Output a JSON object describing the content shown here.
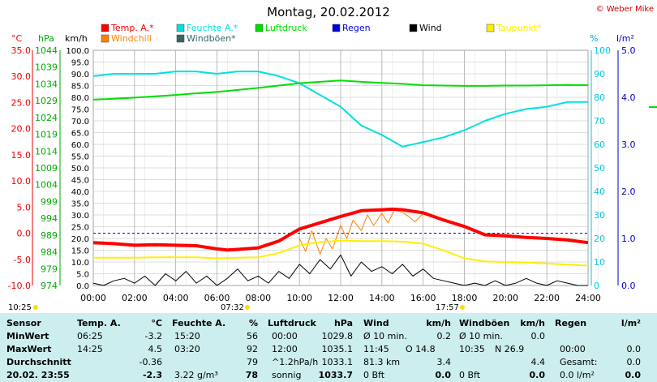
{
  "title": "Montag, 20.02.2012",
  "copyright": "© Weber Mike",
  "colors": {
    "temp": "#ff0000",
    "humidity": "#00e0e0",
    "pressure": "#00dd00",
    "rain": "#0000dd",
    "wind": "#000000",
    "dewpoint": "#ffee00",
    "windchill": "#ff8000",
    "gust": "#336666",
    "bg": "#ffffff",
    "panel": "#cdeeee"
  },
  "axis_units": {
    "temp": "°C",
    "pressure": "hPa",
    "wind": "km/h",
    "humidity": "%",
    "rain": "l/m²"
  },
  "legend": [
    {
      "label": "Temp. A.*",
      "color": "#ff0000"
    },
    {
      "label": "Feuchte A.*",
      "color": "#00e0e0"
    },
    {
      "label": "Luftdruck",
      "color": "#00dd00"
    },
    {
      "label": "Regen",
      "color": "#0000dd"
    },
    {
      "label": "Wind",
      "color": "#000000"
    },
    {
      "label": "Taupunkt*",
      "color": "#ffee00"
    },
    {
      "label": "Windchill",
      "color": "#ff8000"
    },
    {
      "label": "Windböen*",
      "color": "#336666"
    }
  ],
  "sun": {
    "sunrise": "07:32",
    "sunset": "17:57",
    "moonrise": "10:25"
  },
  "chart_data": {
    "type": "line",
    "xlabel": "",
    "x_ticks": [
      "00:00",
      "02:00",
      "04:00",
      "06:00",
      "08:00",
      "10:00",
      "12:00",
      "14:00",
      "16:00",
      "18:00",
      "20:00",
      "22:00",
      "24:00"
    ],
    "temp_ticks": [
      "35.0",
      "30.0",
      "25.0",
      "20.0",
      "15.0",
      "10.0",
      "5.0",
      "0.0",
      "-5.0",
      "-10.0"
    ],
    "pressure_ticks": [
      "1044",
      "1039",
      "1034",
      "1029",
      "1024",
      "1019",
      "1014",
      "1009",
      "1004",
      "999",
      "994",
      "989",
      "984",
      "979",
      "974"
    ],
    "wind_ticks": [
      "100.0",
      "95.0",
      "90.0",
      "85.0",
      "80.0",
      "75.0",
      "70.0",
      "65.0",
      "60.0",
      "55.0",
      "50.0",
      "45.0",
      "40.0",
      "35.0",
      "30.0",
      "25.0",
      "20.0",
      "15.0",
      "10.0",
      "5.0",
      "0.0"
    ],
    "humidity_ticks": [
      "100",
      "90",
      "80",
      "70",
      "60",
      "50",
      "40",
      "30",
      "20",
      "10",
      "0"
    ],
    "rain_ticks": [
      "5.0",
      "4.0",
      "3.0",
      "2.0",
      "1.0",
      "0.0"
    ],
    "ylim_temp": [
      -10,
      35
    ],
    "ylim_pressure": [
      974,
      1044
    ],
    "ylim_wind": [
      0,
      100
    ],
    "ylim_humidity": [
      0,
      100
    ],
    "ylim_rain": [
      0,
      5
    ],
    "xlim_hours": [
      0,
      24
    ],
    "series": [
      {
        "name": "Temp. A.*",
        "axis": "temp",
        "color": "#ff0000",
        "width": 4,
        "x": [
          0,
          1,
          2,
          3,
          4,
          5,
          6,
          6.5,
          7,
          8,
          9,
          10,
          11,
          12,
          13,
          14,
          14.5,
          15,
          16,
          17,
          18,
          19,
          20,
          21,
          22,
          23,
          24
        ],
        "y": [
          -1.8,
          -2.0,
          -2.3,
          -2.2,
          -2.3,
          -2.4,
          -3.0,
          -3.2,
          -3.1,
          -2.8,
          -1.5,
          0.8,
          2.0,
          3.2,
          4.3,
          4.5,
          4.6,
          4.5,
          3.9,
          2.5,
          1.3,
          -0.3,
          -0.5,
          -0.8,
          -1.0,
          -1.3,
          -1.8
        ]
      },
      {
        "name": "Feuchte A.*",
        "axis": "humidity",
        "color": "#00e0e0",
        "width": 2,
        "x": [
          0,
          1,
          2,
          3,
          4,
          5,
          6,
          7,
          8,
          9,
          10,
          11,
          12,
          13,
          14,
          15,
          16,
          17,
          18,
          19,
          20,
          21,
          22,
          23,
          24
        ],
        "y": [
          89,
          90,
          90,
          90,
          91,
          91,
          90,
          91,
          91,
          89,
          86,
          81,
          76,
          68,
          64,
          59,
          61,
          63,
          66,
          70,
          73,
          75,
          76,
          78,
          78
        ]
      },
      {
        "name": "Luftdruck",
        "axis": "pressure",
        "color": "#00dd00",
        "width": 2,
        "x": [
          0,
          1,
          2,
          3,
          4,
          5,
          6,
          7,
          8,
          9,
          10,
          11,
          12,
          13,
          14,
          15,
          16,
          17,
          18,
          19,
          20,
          21,
          22,
          23,
          24
        ],
        "y": [
          1029.3,
          1029.6,
          1029.9,
          1030.3,
          1030.7,
          1031.2,
          1031.6,
          1032.2,
          1032.8,
          1033.5,
          1034.2,
          1034.6,
          1035.0,
          1034.6,
          1034.3,
          1034.0,
          1033.6,
          1033.5,
          1033.4,
          1033.4,
          1033.5,
          1033.5,
          1033.6,
          1033.7,
          1033.6
        ]
      },
      {
        "name": "Taupunkt*",
        "axis": "temp",
        "color": "#ffee00",
        "width": 2,
        "x": [
          0,
          1,
          2,
          3,
          4,
          5,
          6,
          7,
          8,
          9,
          10,
          11,
          12,
          13,
          14,
          15,
          16,
          17,
          18,
          19,
          20,
          21,
          22,
          23,
          24
        ],
        "y": [
          -4.7,
          -4.7,
          -4.7,
          -4.6,
          -4.6,
          -4.6,
          -4.8,
          -4.7,
          -4.6,
          -3.8,
          -2.3,
          -1.7,
          -1.4,
          -1.5,
          -1.5,
          -1.6,
          -2.0,
          -3.3,
          -4.8,
          -5.4,
          -5.5,
          -5.6,
          -5.8,
          -6.0,
          -6.2
        ]
      },
      {
        "name": "Windchill",
        "axis": "temp",
        "color": "#ff8000",
        "width": 1,
        "x": [
          10,
          10.3,
          10.6,
          11,
          11.3,
          11.6,
          12,
          12.3,
          12.6,
          13,
          13.3,
          13.6,
          14,
          14.3,
          14.6,
          15,
          15.3,
          15.6,
          16
        ],
        "y": [
          -1.0,
          -3.5,
          0.5,
          -4.0,
          -1.0,
          -3.0,
          1.5,
          -1.0,
          2.5,
          0.5,
          3.5,
          1.5,
          3.8,
          2.0,
          4.4,
          4.0,
          3.2,
          2.2,
          3.8
        ]
      },
      {
        "name": "Wind",
        "axis": "wind",
        "color": "#000000",
        "width": 1,
        "x": [
          0,
          0.5,
          1,
          1.5,
          2,
          2.5,
          3,
          3.5,
          4,
          4.5,
          5,
          5.5,
          6,
          6.5,
          7,
          7.5,
          8,
          8.5,
          9,
          9.5,
          10,
          10.5,
          11,
          11.5,
          12,
          12.5,
          13,
          13.5,
          14,
          14.5,
          15,
          15.5,
          16,
          16.5,
          17,
          17.5,
          18,
          18.5,
          19,
          19.5,
          20,
          20.5,
          21,
          21.5,
          22,
          22.5,
          23,
          23.5,
          24
        ],
        "y": [
          1,
          0,
          2,
          3,
          1,
          4,
          0,
          5,
          2,
          6,
          1,
          4,
          0,
          3,
          7,
          2,
          4,
          1,
          6,
          3,
          9,
          5,
          11,
          7,
          13,
          4,
          10,
          6,
          8,
          5,
          9,
          4,
          7,
          3,
          2,
          1,
          0,
          1,
          0,
          2,
          0,
          1,
          3,
          1,
          0,
          2,
          1,
          0,
          0
        ]
      }
    ],
    "reference_lines": [
      {
        "axis": "temp",
        "value": 0.0,
        "style": "dashed",
        "color": "#0000dd"
      }
    ]
  },
  "stats": {
    "headers": {
      "sensor": "Sensor",
      "temp": "Temp. A.",
      "temp_unit": "°C",
      "hum": "Feuchte A.",
      "hum_unit": "%",
      "press": "Luftdruck",
      "press_unit": "hPa",
      "wind": "Wind",
      "wind_unit": "km/h",
      "gust": "Windböen",
      "gust_unit": "km/h",
      "rain": "Regen",
      "rain_unit": "l/m²"
    },
    "rows": [
      {
        "label": "MinWert",
        "temp_time": "06:25",
        "temp_val": "-3.2",
        "hum_time": "15:20",
        "hum_val": "56",
        "press_time": "00:00",
        "press_val": "1029.8",
        "wind_a": "Ø 10 min.",
        "wind_val": "0.2",
        "gust_a": "Ø 10 min.",
        "gust_val": "0.0",
        "rain_a": "",
        "rain_val": ""
      },
      {
        "label": "MaxWert",
        "temp_time": "14:25",
        "temp_val": "4.5",
        "hum_time": "03:20",
        "hum_val": "92",
        "press_time": "12:00",
        "press_val": "1035.1",
        "wind_a": "11:45",
        "wind_b": "O 14.8",
        "wind_val": "",
        "gust_a": "10:35",
        "gust_b": "N 26.9",
        "gust_val": "",
        "rain_a": "00:00",
        "rain_val": "0.0"
      },
      {
        "label": "Durchschnitt",
        "temp_time": "",
        "temp_val": "-0.36",
        "hum_time": "",
        "hum_val": "79",
        "press_time": "^1.2hPa/h",
        "press_val": "1033.1",
        "wind_a": "81.3 km",
        "wind_val": "3.4",
        "gust_a": "",
        "gust_val": "4.4",
        "rain_a": "Gesamt:",
        "rain_val": "0.0"
      },
      {
        "label": "20.02. 23:55",
        "temp_time": "",
        "temp_val": "-2.3",
        "hum_time": "3.22 g/m³",
        "hum_val": "78",
        "press_time": "sonnig",
        "press_val": "1033.7",
        "wind_a": "0 Bft",
        "wind_val": "0.0",
        "gust_a": "0 Bft",
        "gust_val": "0.0",
        "rain_a": "0.0 l/m²",
        "rain_val": "0.0"
      }
    ]
  }
}
